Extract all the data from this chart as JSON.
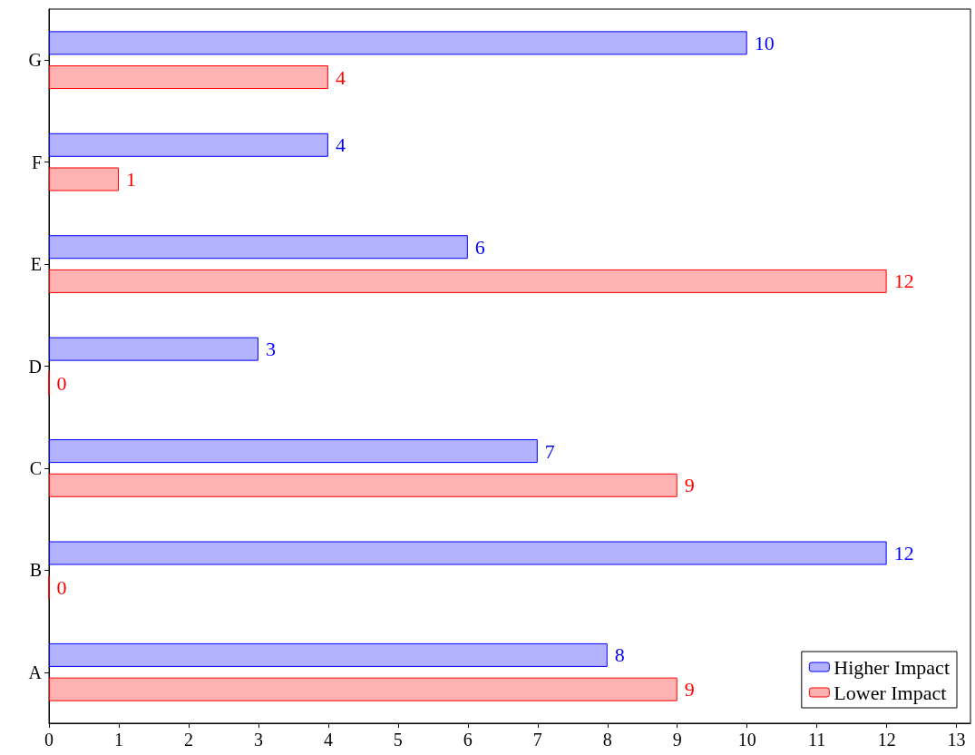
{
  "chart_data": {
    "type": "bar",
    "orientation": "horizontal",
    "categories": [
      "G",
      "F",
      "E",
      "D",
      "C",
      "B",
      "A"
    ],
    "series": [
      {
        "name": "Higher Impact",
        "color": "#0000ff",
        "values": [
          10,
          4,
          6,
          3,
          7,
          12,
          8
        ]
      },
      {
        "name": "Lower Impact",
        "color": "#ff0000",
        "values": [
          4,
          1,
          12,
          0,
          9,
          0,
          9
        ]
      }
    ],
    "xlim": [
      0,
      13.2
    ],
    "xticks": [
      0,
      1,
      2,
      3,
      4,
      5,
      6,
      7,
      8,
      9,
      10,
      11,
      12,
      13
    ],
    "grid": false,
    "legend": "bottom right",
    "data_labels": true
  }
}
